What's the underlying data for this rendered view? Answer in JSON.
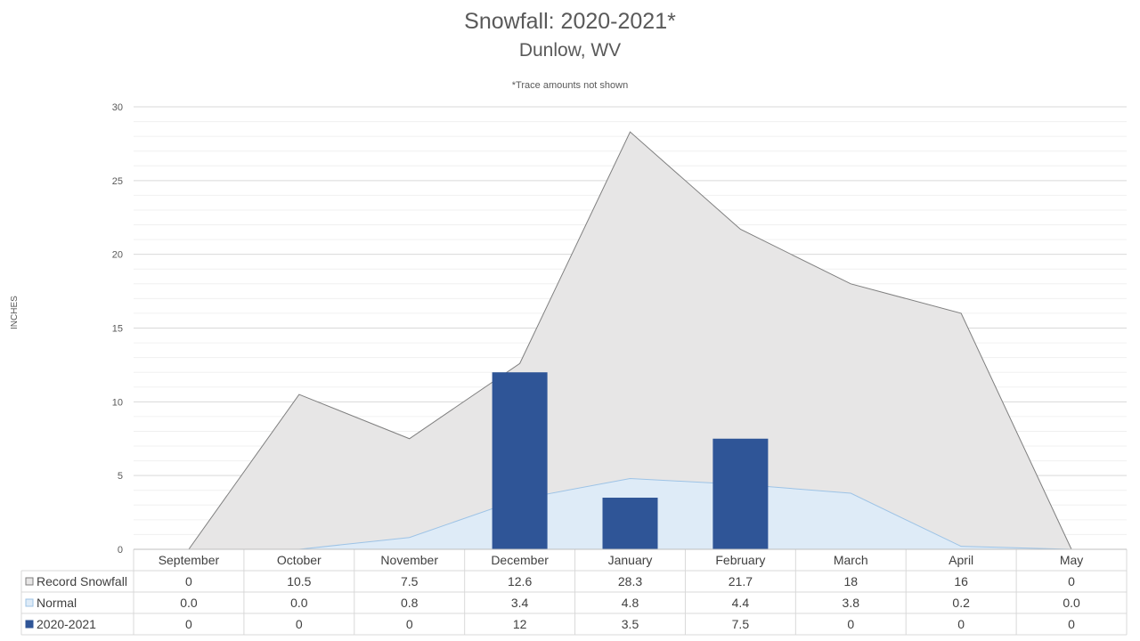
{
  "chart_data": {
    "type": "area",
    "title": "Snowfall: 2020-2021*",
    "subtitle": "Dunlow, WV",
    "note": "*Trace amounts not shown",
    "ylabel": "INCHES",
    "ylim": [
      0,
      30
    ],
    "yticks": [
      0,
      5,
      10,
      15,
      20,
      25,
      30
    ],
    "grid": true,
    "categories": [
      "September",
      "October",
      "November",
      "December",
      "January",
      "February",
      "March",
      "April",
      "May"
    ],
    "series": [
      {
        "name": "Record Snowfall",
        "kind": "area",
        "color": "#e7e6e6",
        "line_color": "#7f7f7f",
        "values": [
          0,
          10.5,
          7.5,
          12.6,
          28.3,
          21.7,
          18,
          16,
          0
        ],
        "table_values": [
          "0",
          "10.5",
          "7.5",
          "12.6",
          "28.3",
          "21.7",
          "18",
          "16",
          "0"
        ]
      },
      {
        "name": "Normal",
        "kind": "area",
        "color": "#deebf7",
        "line_color": "#9dc3e6",
        "values": [
          0.0,
          0.0,
          0.8,
          3.4,
          4.8,
          4.4,
          3.8,
          0.2,
          0.0
        ],
        "table_values": [
          "0.0",
          "0.0",
          "0.8",
          "3.4",
          "4.8",
          "4.4",
          "3.8",
          "0.2",
          "0.0"
        ]
      },
      {
        "name": "2020-2021",
        "kind": "bar",
        "color": "#2f5597",
        "values": [
          0,
          0,
          0,
          12,
          3.5,
          7.5,
          0,
          0,
          0
        ],
        "table_values": [
          "0",
          "0",
          "0",
          "12",
          "3.5",
          "7.5",
          "0",
          "0",
          "0"
        ]
      }
    ]
  }
}
